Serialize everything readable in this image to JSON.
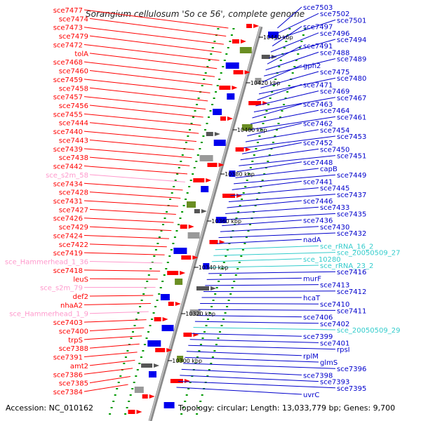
{
  "title": "Sorangium cellulosum 'So ce 56', complete genome",
  "footer": {
    "accession": "Accession: NC_010162",
    "topology": "Topology: circular; Length: 13,033,779 bp; Genes: 9,700"
  },
  "colors": {
    "left_label": "#ff0000",
    "left_rna_label": "#ff99cc",
    "right_label": "#0000cc",
    "right_rna_label": "#33cccc",
    "backbone": "#888888",
    "tick": "#009900"
  },
  "kbp_ticks": [
    "10440 kbp",
    "10420 kbp",
    "10400 kbp",
    "10380 kbp",
    "10360 kbp",
    "10340 kbp",
    "10320 kbp",
    "10300 kbp"
  ],
  "left_labels": [
    {
      "text": "sce7477",
      "type": "gene"
    },
    {
      "text": "sce7474",
      "type": "gene"
    },
    {
      "text": "sce7473",
      "type": "gene"
    },
    {
      "text": "sce7479",
      "type": "gene"
    },
    {
      "text": "sce7472",
      "type": "gene"
    },
    {
      "text": "tolA",
      "type": "gene"
    },
    {
      "text": "sce7468",
      "type": "gene"
    },
    {
      "text": "sce7460",
      "type": "gene"
    },
    {
      "text": "sce7459",
      "type": "gene"
    },
    {
      "text": "sce7458",
      "type": "gene"
    },
    {
      "text": "sce7457",
      "type": "gene"
    },
    {
      "text": "sce7456",
      "type": "gene"
    },
    {
      "text": "sce7455",
      "type": "gene"
    },
    {
      "text": "sce7444",
      "type": "gene"
    },
    {
      "text": "sce7440",
      "type": "gene"
    },
    {
      "text": "sce7443",
      "type": "gene"
    },
    {
      "text": "sce7439",
      "type": "gene"
    },
    {
      "text": "sce7438",
      "type": "gene"
    },
    {
      "text": "sce7442",
      "type": "gene"
    },
    {
      "text": "sce_s2m_58",
      "type": "rna"
    },
    {
      "text": "sce7434",
      "type": "gene"
    },
    {
      "text": "sce7428",
      "type": "gene"
    },
    {
      "text": "sce7431",
      "type": "gene"
    },
    {
      "text": "sce7427",
      "type": "gene"
    },
    {
      "text": "sce7426",
      "type": "gene"
    },
    {
      "text": "sce7429",
      "type": "gene"
    },
    {
      "text": "sce7424",
      "type": "gene"
    },
    {
      "text": "sce7422",
      "type": "gene"
    },
    {
      "text": "sce7419",
      "type": "gene"
    },
    {
      "text": "sce_Hammerhead_1_36",
      "type": "rna"
    },
    {
      "text": "sce7418",
      "type": "gene"
    },
    {
      "text": "leuS",
      "type": "gene"
    },
    {
      "text": "sce_s2m_79",
      "type": "rna"
    },
    {
      "text": "def2",
      "type": "gene"
    },
    {
      "text": "nhaA2",
      "type": "gene"
    },
    {
      "text": "sce_Hammerhead_1_9",
      "type": "rna"
    },
    {
      "text": "sce7403",
      "type": "gene"
    },
    {
      "text": "sce7400",
      "type": "gene"
    },
    {
      "text": "trpS",
      "type": "gene"
    },
    {
      "text": "sce7388",
      "type": "gene"
    },
    {
      "text": "sce7391",
      "type": "gene"
    },
    {
      "text": "amt2",
      "type": "gene"
    },
    {
      "text": "sce7386",
      "type": "gene"
    },
    {
      "text": "sce7385",
      "type": "gene"
    },
    {
      "text": "sce7384",
      "type": "gene"
    }
  ],
  "right_labels": [
    {
      "text": "sce7503",
      "type": "gene"
    },
    {
      "text": "sce7502",
      "type": "gene"
    },
    {
      "text": "sce7501",
      "type": "gene"
    },
    {
      "text": "sce7497",
      "type": "gene"
    },
    {
      "text": "sce7496",
      "type": "gene"
    },
    {
      "text": "sce7494",
      "type": "gene"
    },
    {
      "text": "sce7491",
      "type": "gene"
    },
    {
      "text": "sce7488",
      "type": "gene"
    },
    {
      "text": "sce7489",
      "type": "gene"
    },
    {
      "text": "gph2",
      "type": "gene"
    },
    {
      "text": "sce7475",
      "type": "gene"
    },
    {
      "text": "sce7480",
      "type": "gene"
    },
    {
      "text": "sce7471",
      "type": "gene"
    },
    {
      "text": "sce7469",
      "type": "gene"
    },
    {
      "text": "sce7467",
      "type": "gene"
    },
    {
      "text": "sce7463",
      "type": "gene"
    },
    {
      "text": "sce7464",
      "type": "gene"
    },
    {
      "text": "sce7461",
      "type": "gene"
    },
    {
      "text": "sce7462",
      "type": "gene"
    },
    {
      "text": "sce7454",
      "type": "gene"
    },
    {
      "text": "sce7453",
      "type": "gene"
    },
    {
      "text": "sce7452",
      "type": "gene"
    },
    {
      "text": "sce7450",
      "type": "gene"
    },
    {
      "text": "sce7451",
      "type": "gene"
    },
    {
      "text": "sce7448",
      "type": "gene"
    },
    {
      "text": "capB",
      "type": "gene"
    },
    {
      "text": "sce7449",
      "type": "gene"
    },
    {
      "text": "sce7441",
      "type": "gene"
    },
    {
      "text": "sce7445",
      "type": "gene"
    },
    {
      "text": "sce7437",
      "type": "gene"
    },
    {
      "text": "sce7446",
      "type": "gene"
    },
    {
      "text": "sce7433",
      "type": "gene"
    },
    {
      "text": "sce7435",
      "type": "gene"
    },
    {
      "text": "sce7436",
      "type": "gene"
    },
    {
      "text": "sce7430",
      "type": "gene"
    },
    {
      "text": "sce7432",
      "type": "gene"
    },
    {
      "text": "nadA",
      "type": "gene"
    },
    {
      "text": "sce_rRNA_16_2",
      "type": "rna"
    },
    {
      "text": "sce_20050509_27",
      "type": "rna"
    },
    {
      "text": "sce_10280",
      "type": "rna"
    },
    {
      "text": "sce_rRNA_23_2",
      "type": "rna"
    },
    {
      "text": "sce7416",
      "type": "gene"
    },
    {
      "text": "murF",
      "type": "gene"
    },
    {
      "text": "sce7413",
      "type": "gene"
    },
    {
      "text": "sce7412",
      "type": "gene"
    },
    {
      "text": "hcaT",
      "type": "gene"
    },
    {
      "text": "sce7410",
      "type": "gene"
    },
    {
      "text": "sce7411",
      "type": "gene"
    },
    {
      "text": "sce7406",
      "type": "gene"
    },
    {
      "text": "sce7402",
      "type": "gene"
    },
    {
      "text": "sce_20050509_29",
      "type": "rna"
    },
    {
      "text": "sce7399",
      "type": "gene"
    },
    {
      "text": "sce7401",
      "type": "gene"
    },
    {
      "text": "rpsI",
      "type": "gene"
    },
    {
      "text": "rplM",
      "type": "gene"
    },
    {
      "text": "glmS",
      "type": "gene"
    },
    {
      "text": "sce7396",
      "type": "gene"
    },
    {
      "text": "sce7398",
      "type": "gene"
    },
    {
      "text": "sce7393",
      "type": "gene"
    },
    {
      "text": "sce7395",
      "type": "gene"
    },
    {
      "text": "uvrC",
      "type": "gene"
    }
  ]
}
